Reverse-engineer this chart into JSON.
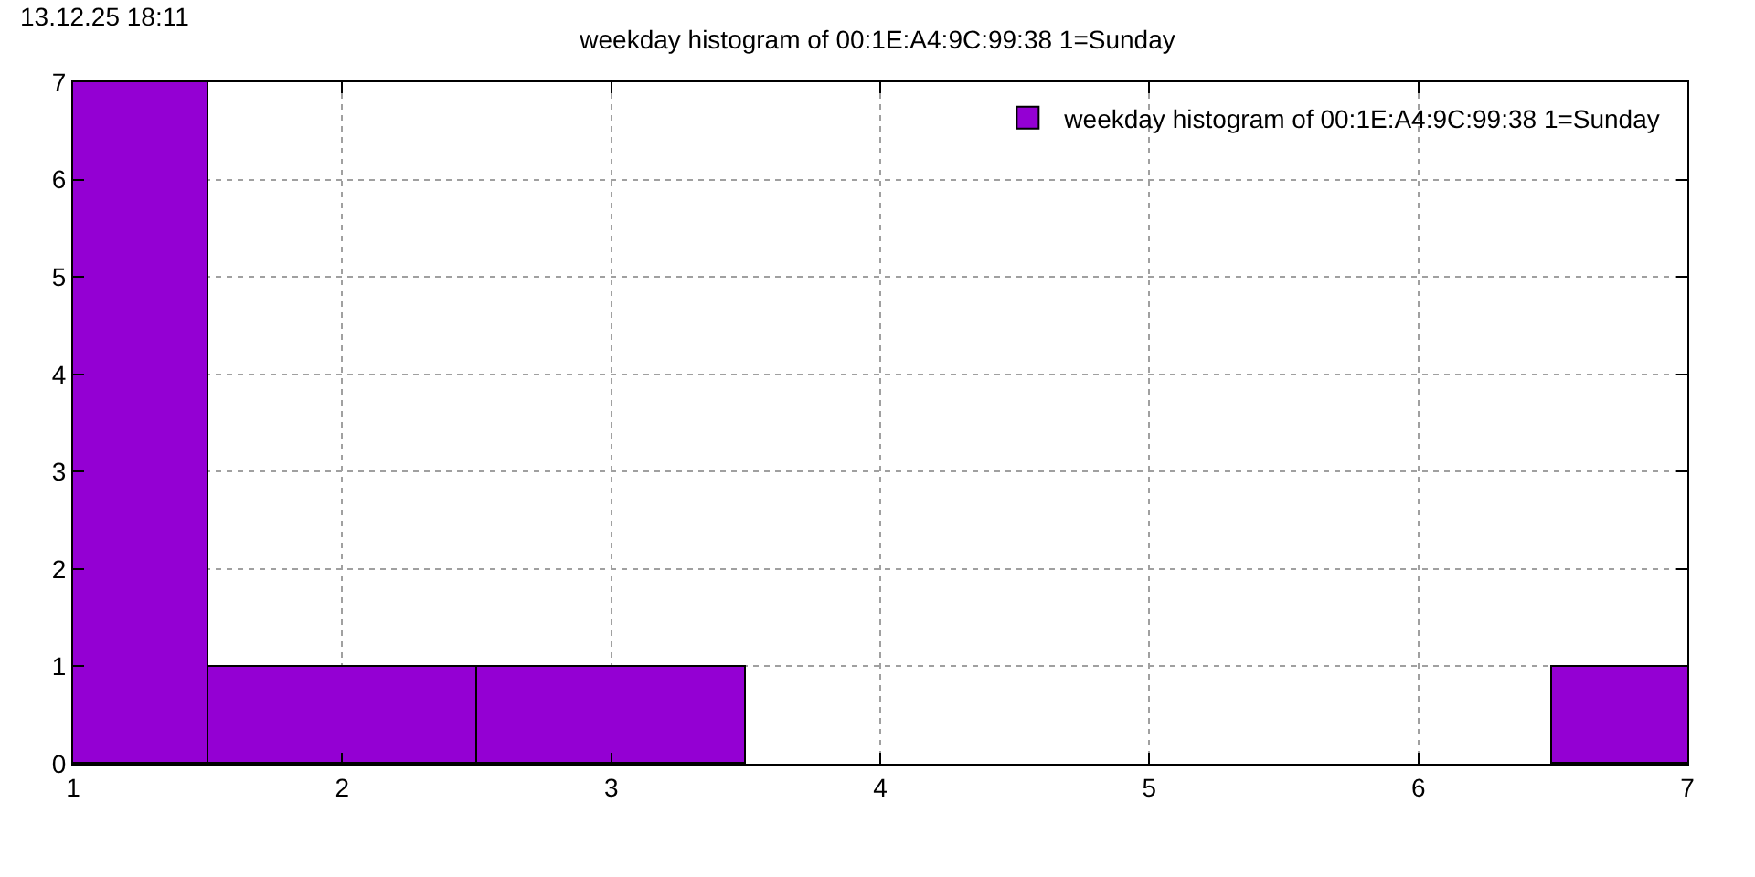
{
  "chart_data": {
    "type": "bar",
    "title": "weekday histogram of 00:1E:A4:9C:99:38 1=Sunday",
    "annotations": [
      "13.12.25 18:11"
    ],
    "x": [
      1,
      2,
      3,
      7
    ],
    "series": [
      {
        "name": "weekday histogram of 00:1E:A4:9C:99:38 1=Sunday",
        "color": "#9400d3",
        "values": [
          7,
          1,
          1,
          1
        ]
      }
    ],
    "xlim": [
      1,
      7
    ],
    "xticks": [
      1,
      2,
      3,
      4,
      5,
      6,
      7
    ],
    "ylim": [
      0,
      7
    ],
    "yticks": [
      0,
      1,
      2,
      3,
      4,
      5,
      6,
      7
    ],
    "grid": true,
    "legend": "top right"
  }
}
